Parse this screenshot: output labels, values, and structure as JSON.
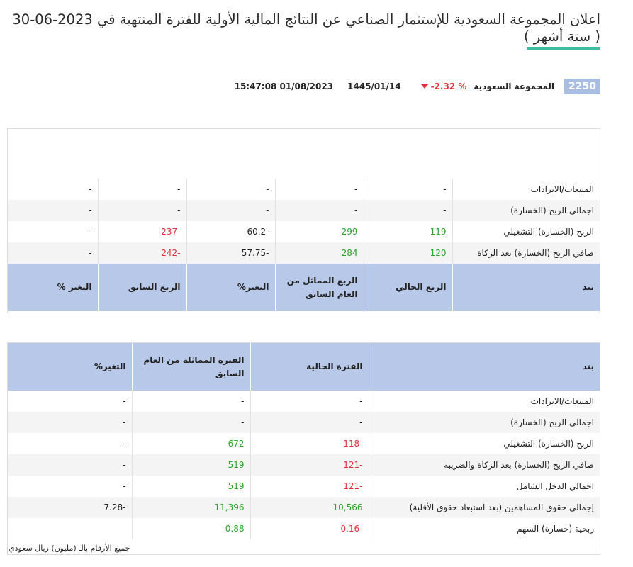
{
  "title": "اعلان المجموعة السعودية للإستثمار الصناعي عن النتائج المالية الأولية للفترة المنتهية في 2023-06-30 ( ستة أشهر )",
  "info": {
    "code": "2250",
    "company": "المجموعة السعودية",
    "change": "-2.32 %",
    "hijri_date": "1445/01/14",
    "datetime": "15:47:08 01/08/2023",
    "colors": {
      "badge": "#a9bde3",
      "negative": "#e2313a",
      "positive": "#2aa52a",
      "header": "#b8c8e8",
      "underline": "#3dbd9e"
    }
  },
  "quarter_table": {
    "headers": [
      "بند",
      "الربع الحالي",
      "الربع المماثل من العام السابق",
      "التغير%",
      "الربع السابق",
      "التغير %"
    ],
    "rows": [
      {
        "item": "المبيعات/الايرادات",
        "current": "-",
        "prior_year": "-",
        "change": "-",
        "previous_q": "-",
        "change_q": "-"
      },
      {
        "item": "اجمالي الربح (الخسارة)",
        "current": "-",
        "prior_year": "-",
        "change": "-",
        "previous_q": "-",
        "change_q": "-"
      },
      {
        "item": "الربح (الخسارة) التشغيلي",
        "current": "119",
        "prior_year": "299",
        "change": "-60.2",
        "previous_q": "-237",
        "change_q": "-"
      },
      {
        "item": "صافي الربح (الخسارة) بعد الزكاة",
        "current": "120",
        "prior_year": "284",
        "change": "-57.75",
        "previous_q": "-242",
        "change_q": "-"
      }
    ]
  },
  "period_table": {
    "headers": [
      "بند",
      "الفترة الحالية",
      "الفترة المماثلة من العام السابق",
      "التغير%"
    ],
    "rows": [
      {
        "item": "المبيعات/الايرادات",
        "current": "-",
        "prior_year": "-",
        "change": "-"
      },
      {
        "item": "اجمالي الربح (الخسارة)",
        "current": "-",
        "prior_year": "-",
        "change": "-"
      },
      {
        "item": "الربح (الخسارة) التشغيلي",
        "current": "-118",
        "prior_year": "672",
        "change": "-"
      },
      {
        "item": "صافي الربح (الخسارة) بعد الزكاة والضريبة",
        "current": "-121",
        "prior_year": "519",
        "change": "-"
      },
      {
        "item": "اجمالي الدخل الشامل",
        "current": "-121",
        "prior_year": "519",
        "change": "-"
      },
      {
        "item": "إجمالي حقوق المساهمين (بعد استبعاد حقوق الأقلية)",
        "current": "10,566",
        "prior_year": "11,396",
        "change": "-7.28"
      },
      {
        "item": "ربحية (خسارة) السهم",
        "current": "-0.16",
        "prior_year": "0.88",
        "change": ""
      }
    ]
  },
  "footnote": "جميع الأرقام بالـ (مليون) ريال سعودي"
}
